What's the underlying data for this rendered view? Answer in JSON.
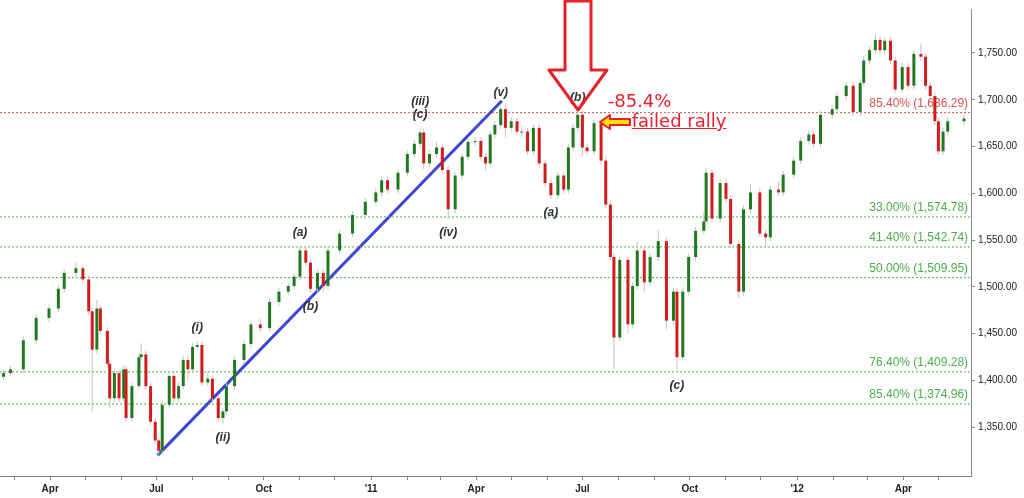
{
  "chart_data": {
    "type": "candlestick",
    "x": [
      "2010-02-20",
      "2010-02-26",
      "2010-03-09",
      "2010-03-20",
      "2010-03-31",
      "2010-04-08",
      "2010-04-13",
      "2010-04-23",
      "2010-04-29",
      "2010-05-04",
      "2010-05-07",
      "2010-05-11",
      "2010-05-14",
      "2010-05-20",
      "2010-05-22",
      "2010-05-26",
      "2010-05-30",
      "2010-06-03",
      "2010-06-05",
      "2010-06-10",
      "2010-06-16",
      "2010-06-18",
      "2010-06-22",
      "2010-06-26",
      "2010-06-30",
      "2010-07-03",
      "2010-07-06",
      "2010-07-12",
      "2010-07-16",
      "2010-07-20",
      "2010-07-24",
      "2010-07-28",
      "2010-08-01",
      "2010-08-05",
      "2010-08-09",
      "2010-08-14",
      "2010-08-18",
      "2010-08-23",
      "2010-08-27",
      "2010-08-30",
      "2010-09-06",
      "2010-09-14",
      "2010-09-20",
      "2010-09-28",
      "2010-10-06",
      "2010-10-14",
      "2010-10-22",
      "2010-10-27",
      "2010-11-01",
      "2010-11-06",
      "2010-11-10",
      "2010-11-16",
      "2010-11-21",
      "2010-11-25",
      "2010-12-05",
      "2010-12-16",
      "2010-12-27",
      "2011-01-05",
      "2011-01-10",
      "2011-01-15",
      "2011-01-24",
      "2011-02-01",
      "2011-02-07",
      "2011-02-12",
      "2011-02-15",
      "2011-02-20",
      "2011-02-26",
      "2011-03-03",
      "2011-03-08",
      "2011-03-14",
      "2011-03-20",
      "2011-03-25",
      "2011-03-31",
      "2011-04-05",
      "2011-04-09",
      "2011-04-13",
      "2011-04-17",
      "2011-04-22",
      "2011-04-26",
      "2011-05-01",
      "2011-05-06",
      "2011-05-10",
      "2011-05-15",
      "2011-05-20",
      "2011-05-25",
      "2011-05-30",
      "2011-06-04",
      "2011-06-10",
      "2011-06-15",
      "2011-06-19",
      "2011-06-23",
      "2011-06-27",
      "2011-07-01",
      "2011-07-05",
      "2011-07-11",
      "2011-07-17",
      "2011-07-21",
      "2011-07-25",
      "2011-07-28",
      "2011-08-02",
      "2011-08-09",
      "2011-08-13",
      "2011-08-17",
      "2011-08-23",
      "2011-08-28",
      "2011-09-04",
      "2011-09-11",
      "2011-09-17",
      "2011-09-20",
      "2011-09-25",
      "2011-09-30",
      "2011-10-06",
      "2011-10-13",
      "2011-10-15",
      "2011-10-20",
      "2011-10-27",
      "2011-11-01",
      "2011-11-05",
      "2011-11-12",
      "2011-11-16",
      "2011-11-22",
      "2011-11-30",
      "2011-12-05",
      "2011-12-09",
      "2011-12-16",
      "2011-12-20",
      "2011-12-29",
      "2012-01-04",
      "2012-01-11",
      "2012-01-15",
      "2012-01-21",
      "2012-01-31",
      "2012-02-04",
      "2012-02-12",
      "2012-02-18",
      "2012-02-24",
      "2012-02-27",
      "2012-03-03",
      "2012-03-08",
      "2012-03-12",
      "2012-03-16",
      "2012-03-21",
      "2012-03-25",
      "2012-03-31",
      "2012-04-05",
      "2012-04-10",
      "2012-04-16",
      "2012-04-20",
      "2012-04-24",
      "2012-04-28",
      "2012-05-01",
      "2012-05-05",
      "2012-05-09",
      "2012-05-23"
    ],
    "ohlc": [
      [
        1404,
        1412,
        1400,
        1408
      ],
      [
        1408,
        1416,
        1404,
        1412
      ],
      [
        1412,
        1447,
        1408,
        1443
      ],
      [
        1443,
        1471,
        1439,
        1467
      ],
      [
        1467,
        1481,
        1463,
        1477
      ],
      [
        1477,
        1502,
        1473,
        1498
      ],
      [
        1498,
        1519,
        1494,
        1515
      ],
      [
        1515,
        1526,
        1511,
        1520
      ],
      [
        1520,
        1524,
        1504,
        1508
      ],
      [
        1508,
        1512,
        1470,
        1474
      ],
      [
        1474,
        1478,
        1367,
        1433
      ],
      [
        1433,
        1486,
        1429,
        1477
      ],
      [
        1477,
        1481,
        1449,
        1453
      ],
      [
        1453,
        1457,
        1414,
        1418
      ],
      [
        1418,
        1422,
        1370,
        1381
      ],
      [
        1381,
        1412,
        1377,
        1408
      ],
      [
        1408,
        1412,
        1377,
        1381
      ],
      [
        1381,
        1416,
        1377,
        1412
      ],
      [
        1412,
        1416,
        1356,
        1360
      ],
      [
        1360,
        1398,
        1356,
        1394
      ],
      [
        1394,
        1429,
        1390,
        1425
      ],
      [
        1425,
        1440,
        1421,
        1428
      ],
      [
        1428,
        1432,
        1390,
        1394
      ],
      [
        1394,
        1398,
        1352,
        1356
      ],
      [
        1356,
        1360,
        1332,
        1336
      ],
      [
        1336,
        1340,
        1320,
        1325
      ],
      [
        1325,
        1378,
        1321,
        1374
      ],
      [
        1374,
        1409,
        1370,
        1405
      ],
      [
        1405,
        1409,
        1377,
        1381
      ],
      [
        1381,
        1398,
        1377,
        1394
      ],
      [
        1394,
        1426,
        1390,
        1422
      ],
      [
        1422,
        1426,
        1400,
        1412
      ],
      [
        1412,
        1440,
        1408,
        1436
      ],
      [
        1436,
        1442,
        1432,
        1438
      ],
      [
        1438,
        1442,
        1394,
        1398
      ],
      [
        1398,
        1410,
        1394,
        1402
      ],
      [
        1402,
        1406,
        1377,
        1381
      ],
      [
        1381,
        1385,
        1356,
        1360
      ],
      [
        1360,
        1371,
        1354,
        1367
      ],
      [
        1367,
        1398,
        1363,
        1394
      ],
      [
        1394,
        1426,
        1390,
        1422
      ],
      [
        1422,
        1443,
        1418,
        1439
      ],
      [
        1439,
        1464,
        1435,
        1460
      ],
      [
        1460,
        1466,
        1452,
        1456
      ],
      [
        1456,
        1488,
        1452,
        1484
      ],
      [
        1484,
        1499,
        1480,
        1495
      ],
      [
        1495,
        1505,
        1491,
        1501
      ],
      [
        1501,
        1515,
        1497,
        1511
      ],
      [
        1511,
        1543,
        1507,
        1539
      ],
      [
        1539,
        1543,
        1522,
        1526
      ],
      [
        1526,
        1530,
        1494,
        1498
      ],
      [
        1498,
        1519,
        1494,
        1515
      ],
      [
        1515,
        1519,
        1495,
        1501
      ],
      [
        1501,
        1543,
        1497,
        1539
      ],
      [
        1539,
        1561,
        1535,
        1557
      ],
      [
        1557,
        1581,
        1553,
        1577
      ],
      [
        1577,
        1595,
        1573,
        1591
      ],
      [
        1591,
        1605,
        1587,
        1601
      ],
      [
        1601,
        1618,
        1597,
        1614
      ],
      [
        1614,
        1618,
        1600,
        1604
      ],
      [
        1604,
        1626,
        1600,
        1622
      ],
      [
        1622,
        1646,
        1618,
        1642
      ],
      [
        1642,
        1657,
        1638,
        1653
      ],
      [
        1653,
        1669,
        1649,
        1665
      ],
      [
        1665,
        1669,
        1626,
        1632
      ],
      [
        1632,
        1646,
        1628,
        1642
      ],
      [
        1642,
        1655,
        1638,
        1649
      ],
      [
        1649,
        1653,
        1621,
        1625
      ],
      [
        1625,
        1629,
        1573,
        1583
      ],
      [
        1583,
        1623,
        1579,
        1619
      ],
      [
        1619,
        1643,
        1615,
        1639
      ],
      [
        1639,
        1659,
        1635,
        1655
      ],
      [
        1655,
        1660,
        1651,
        1656
      ],
      [
        1656,
        1660,
        1635,
        1639
      ],
      [
        1639,
        1643,
        1624,
        1632
      ],
      [
        1632,
        1667,
        1628,
        1663
      ],
      [
        1663,
        1677,
        1659,
        1673
      ],
      [
        1673,
        1693,
        1669,
        1690
      ],
      [
        1690,
        1694,
        1660,
        1670
      ],
      [
        1670,
        1681,
        1666,
        1677
      ],
      [
        1677,
        1681,
        1662,
        1666
      ],
      [
        1666,
        1672,
        1660,
        1666
      ],
      [
        1666,
        1670,
        1641,
        1645
      ],
      [
        1645,
        1674,
        1641,
        1670
      ],
      [
        1670,
        1674,
        1628,
        1632
      ],
      [
        1632,
        1636,
        1607,
        1611
      ],
      [
        1611,
        1615,
        1594,
        1598
      ],
      [
        1598,
        1623,
        1594,
        1619
      ],
      [
        1619,
        1623,
        1600,
        1604
      ],
      [
        1604,
        1653,
        1600,
        1649
      ],
      [
        1649,
        1674,
        1645,
        1670
      ],
      [
        1670,
        1687,
        1666,
        1684
      ],
      [
        1684,
        1688,
        1640,
        1649
      ],
      [
        1649,
        1653,
        1641,
        1645
      ],
      [
        1645,
        1679,
        1641,
        1675
      ],
      [
        1675,
        1679,
        1631,
        1635
      ],
      [
        1635,
        1639,
        1584,
        1588
      ],
      [
        1588,
        1592,
        1528,
        1532
      ],
      [
        1532,
        1536,
        1412,
        1446
      ],
      [
        1446,
        1533,
        1442,
        1529
      ],
      [
        1529,
        1533,
        1450,
        1460
      ],
      [
        1460,
        1505,
        1456,
        1501
      ],
      [
        1501,
        1548,
        1497,
        1539
      ],
      [
        1539,
        1543,
        1495,
        1505
      ],
      [
        1505,
        1536,
        1501,
        1532
      ],
      [
        1532,
        1560,
        1528,
        1549
      ],
      [
        1549,
        1553,
        1455,
        1464
      ],
      [
        1464,
        1499,
        1460,
        1495
      ],
      [
        1495,
        1499,
        1409,
        1425
      ],
      [
        1425,
        1499,
        1421,
        1495
      ],
      [
        1495,
        1536,
        1491,
        1532
      ],
      [
        1532,
        1564,
        1528,
        1560
      ],
      [
        1560,
        1580,
        1556,
        1570
      ],
      [
        1570,
        1627,
        1566,
        1622
      ],
      [
        1622,
        1626,
        1569,
        1573
      ],
      [
        1573,
        1615,
        1569,
        1611
      ],
      [
        1611,
        1615,
        1590,
        1594
      ],
      [
        1594,
        1598,
        1542,
        1546
      ],
      [
        1546,
        1550,
        1488,
        1495
      ],
      [
        1495,
        1587,
        1491,
        1583
      ],
      [
        1583,
        1610,
        1579,
        1601
      ],
      [
        1601,
        1605,
        1553,
        1557
      ],
      [
        1557,
        1561,
        1543,
        1553
      ],
      [
        1553,
        1608,
        1549,
        1604
      ],
      [
        1604,
        1612,
        1597,
        1601
      ],
      [
        1601,
        1624,
        1597,
        1620
      ],
      [
        1620,
        1639,
        1616,
        1635
      ],
      [
        1635,
        1660,
        1631,
        1656
      ],
      [
        1656,
        1667,
        1652,
        1663
      ],
      [
        1663,
        1667,
        1649,
        1653
      ],
      [
        1653,
        1688,
        1649,
        1684
      ],
      [
        1684,
        1694,
        1680,
        1690
      ],
      [
        1690,
        1708,
        1686,
        1704
      ],
      [
        1704,
        1719,
        1700,
        1715
      ],
      [
        1715,
        1719,
        1683,
        1687
      ],
      [
        1687,
        1722,
        1683,
        1718
      ],
      [
        1718,
        1746,
        1714,
        1742
      ],
      [
        1742,
        1757,
        1738,
        1753
      ],
      [
        1753,
        1770,
        1749,
        1764
      ],
      [
        1764,
        1768,
        1749,
        1753
      ],
      [
        1753,
        1767,
        1749,
        1763
      ],
      [
        1763,
        1767,
        1738,
        1742
      ],
      [
        1742,
        1746,
        1707,
        1711
      ],
      [
        1711,
        1739,
        1707,
        1735
      ],
      [
        1735,
        1739,
        1711,
        1715
      ],
      [
        1715,
        1753,
        1711,
        1749
      ],
      [
        1749,
        1760,
        1742,
        1746
      ],
      [
        1746,
        1750,
        1711,
        1715
      ],
      [
        1715,
        1719,
        1700,
        1704
      ],
      [
        1704,
        1708,
        1673,
        1677
      ],
      [
        1677,
        1681,
        1641,
        1645
      ],
      [
        1645,
        1670,
        1641,
        1666
      ],
      [
        1666,
        1681,
        1662,
        1677
      ],
      [
        1677,
        1684,
        1673,
        1680
      ]
    ],
    "series": [
      {
        "type": "line",
        "x": [
          "2010-07-02",
          "2011-04-23"
        ],
        "values": [
          1320,
          1699
        ],
        "color": "#3c46d2"
      }
    ],
    "xlim": [
      "2010-02-17",
      "2012-05-29"
    ],
    "ylim": [
      1298,
      1797
    ],
    "xticks": [
      {
        "value": "2010-03-01",
        "label": null
      },
      {
        "value": "2010-04-01",
        "label": "Apr"
      },
      {
        "value": "2010-05-01",
        "label": null
      },
      {
        "value": "2010-06-01",
        "label": null
      },
      {
        "value": "2010-07-01",
        "label": "Jul"
      },
      {
        "value": "2010-08-01",
        "label": null
      },
      {
        "value": "2010-09-01",
        "label": null
      },
      {
        "value": "2010-10-01",
        "label": "Oct"
      },
      {
        "value": "2010-11-01",
        "label": null
      },
      {
        "value": "2010-12-01",
        "label": null
      },
      {
        "value": "2011-01-01",
        "label": "'11"
      },
      {
        "value": "2011-02-01",
        "label": null
      },
      {
        "value": "2011-03-01",
        "label": null
      },
      {
        "value": "2011-04-01",
        "label": "Apr"
      },
      {
        "value": "2011-05-01",
        "label": null
      },
      {
        "value": "2011-06-01",
        "label": null
      },
      {
        "value": "2011-07-01",
        "label": "Jul"
      },
      {
        "value": "2011-08-01",
        "label": null
      },
      {
        "value": "2011-09-01",
        "label": null
      },
      {
        "value": "2011-10-01",
        "label": "Oct"
      },
      {
        "value": "2011-11-01",
        "label": null
      },
      {
        "value": "2011-12-01",
        "label": null
      },
      {
        "value": "2012-01-01",
        "label": "'12"
      },
      {
        "value": "2012-02-01",
        "label": null
      },
      {
        "value": "2012-03-01",
        "label": null
      },
      {
        "value": "2012-04-01",
        "label": "Apr"
      },
      {
        "value": "2012-05-01",
        "label": null
      }
    ],
    "yticks": [
      {
        "value": 1350,
        "label": "1,350.00"
      },
      {
        "value": 1400,
        "label": "1,400.00"
      },
      {
        "value": 1450,
        "label": "1,450.00"
      },
      {
        "value": 1500,
        "label": "1,500.00"
      },
      {
        "value": 1550,
        "label": "1,550.00"
      },
      {
        "value": 1600,
        "label": "1,600.00"
      },
      {
        "value": 1650,
        "label": "1,650.00"
      },
      {
        "value": 1700,
        "label": "1,700.00"
      },
      {
        "value": 1750,
        "label": "1,750.00"
      }
    ],
    "ref_lines": [
      {
        "axis": "y",
        "value": 1686.29,
        "label": "85.40% (1,686.29)",
        "color": "#d9534f",
        "line_style": "dotted"
      },
      {
        "axis": "y",
        "value": 1574.78,
        "label": "33.00% (1,574.78)",
        "color": "#4cae4c",
        "line_style": "dotted"
      },
      {
        "axis": "y",
        "value": 1542.74,
        "label": "41.40% (1,542.74)",
        "color": "#4cae4c",
        "line_style": "dotted"
      },
      {
        "axis": "y",
        "value": 1509.95,
        "label": "50.00% (1,509.95)",
        "color": "#4cae4c",
        "line_style": "dotted"
      },
      {
        "axis": "y",
        "value": 1409.28,
        "label": "76.40% (1,409.28)",
        "color": "#4cae4c",
        "line_style": "dotted"
      },
      {
        "axis": "y",
        "value": 1374.96,
        "label": "85.40% (1,374.96)",
        "color": "#4cae4c",
        "line_style": "dotted"
      }
    ],
    "annotations": [
      {
        "text": "(i)",
        "x": "2010-08-05",
        "y": 1442
      },
      {
        "text": "(ii)",
        "x": "2010-08-27",
        "y": 1354
      },
      {
        "text": "(a)",
        "x": "2010-11-01",
        "y": 1543
      },
      {
        "text": "(b)",
        "x": "2010-11-10",
        "y": 1494
      },
      {
        "text": "(iii)\n(c)",
        "x": "2011-02-12",
        "y": 1669
      },
      {
        "text": "(iv)",
        "x": "2011-03-08",
        "y": 1573
      },
      {
        "text": "(v)",
        "x": "2011-04-22",
        "y": 1693
      },
      {
        "text": "(a)",
        "x": "2011-06-04",
        "y": 1594
      },
      {
        "text": "(c)",
        "x": "2011-09-20",
        "y": 1409
      },
      {
        "text": "(b)",
        "x": "2011-06-27",
        "y": 1687
      },
      "-85.4%",
      "failed rally"
    ],
    "grid": false,
    "legend": false
  }
}
